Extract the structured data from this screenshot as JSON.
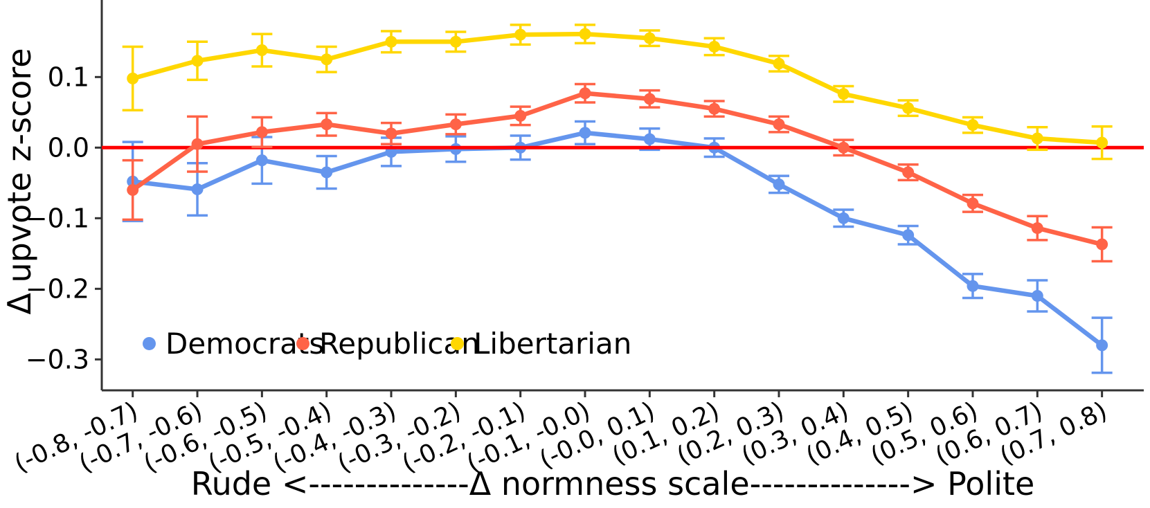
{
  "chart_data": {
    "type": "line",
    "title": "",
    "ylabel": "Δ upvote z-score",
    "xlabel": "Rude <--------------Δ normness scale--------------> Polite",
    "categories": [
      "(-0.8, -0.7)",
      "(-0.7, -0.6)",
      "(-0.6, -0.5)",
      "(-0.5, -0.4)",
      "(-0.4, -0.3)",
      "(-0.3, -0.2)",
      "(-0.2, -0.1)",
      "(-0.1, -0.0)",
      "(-0.0, 0.1)",
      "(0.1, 0.2)",
      "(0.2, 0.3)",
      "(0.3, 0.4)",
      "(0.4, 0.5)",
      "(0.5, 0.6)",
      "(0.6, 0.7)",
      "(0.7, 0.8)"
    ],
    "y_ticks": [
      0.1,
      0.0,
      -0.1,
      -0.2,
      -0.3
    ],
    "y_tick_labels": [
      "0.1",
      "0.0",
      "−0.1",
      "−0.2",
      "−0.3"
    ],
    "ylim": [
      -0.345,
      0.2
    ],
    "grid": false,
    "legend_position": "lower-left-inside-horizontal",
    "zero_line": {
      "y": 0.0,
      "color": "#ff0000"
    },
    "axis_color": "#333333",
    "series": [
      {
        "name": "Democrats",
        "color": "#6495ed",
        "values": [
          -0.048,
          -0.059,
          -0.018,
          -0.035,
          -0.006,
          -0.002,
          0.0,
          0.021,
          0.012,
          0.0,
          -0.052,
          -0.1,
          -0.124,
          -0.196,
          -0.21,
          -0.28
        ],
        "errors": [
          0.056,
          0.037,
          0.033,
          0.023,
          0.02,
          0.018,
          0.017,
          0.016,
          0.015,
          0.013,
          0.012,
          0.012,
          0.013,
          0.017,
          0.022,
          0.039
        ]
      },
      {
        "name": "Republican",
        "color": "#ff6347",
        "values": [
          -0.06,
          0.005,
          0.022,
          0.033,
          0.02,
          0.033,
          0.045,
          0.077,
          0.069,
          0.055,
          0.033,
          0.0,
          -0.035,
          -0.079,
          -0.114,
          -0.137
        ],
        "errors": [
          0.042,
          0.039,
          0.021,
          0.016,
          0.015,
          0.014,
          0.013,
          0.013,
          0.012,
          0.011,
          0.011,
          0.011,
          0.011,
          0.012,
          0.017,
          0.024
        ]
      },
      {
        "name": "Libertarian",
        "color": "#ffd700",
        "values": [
          0.098,
          0.123,
          0.138,
          0.125,
          0.15,
          0.15,
          0.16,
          0.161,
          0.155,
          0.143,
          0.119,
          0.076,
          0.056,
          0.032,
          0.013,
          0.007
        ],
        "errors": [
          0.045,
          0.027,
          0.023,
          0.018,
          0.015,
          0.014,
          0.014,
          0.013,
          0.011,
          0.012,
          0.011,
          0.011,
          0.011,
          0.011,
          0.016,
          0.023
        ]
      }
    ]
  }
}
